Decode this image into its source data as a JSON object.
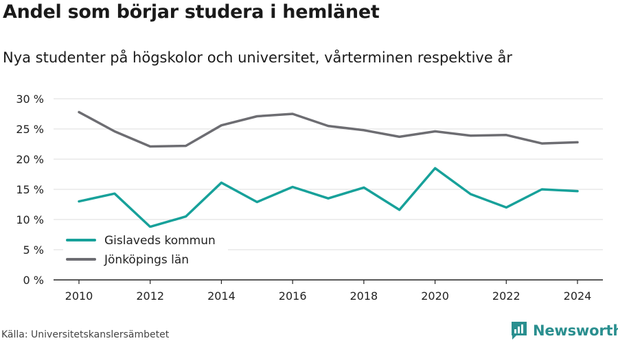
{
  "title": "Andel som börjar studera i hemlänet",
  "subtitle": "Nya studenter på högskolor och universitet, vårterminen respektive år",
  "source": "Källa: Universitetskanslersämbetet",
  "brand": {
    "name": "Newsworthy",
    "icon": "newsworthy-logo-icon",
    "color": "#2a8f8f"
  },
  "chart_data": {
    "type": "line",
    "title": "Andel som börjar studera i hemlänet",
    "subtitle": "Nya studenter på högskolor och universitet, vårterminen respektive år",
    "x": [
      2010,
      2011,
      2012,
      2013,
      2014,
      2015,
      2016,
      2017,
      2018,
      2019,
      2020,
      2021,
      2022,
      2023,
      2024
    ],
    "x_ticks": [
      2010,
      2012,
      2014,
      2016,
      2018,
      2020,
      2022,
      2024
    ],
    "y_ticks": [
      "0 %",
      "5 %",
      "10 %",
      "15 %",
      "20 %",
      "25 %",
      "30 %"
    ],
    "ylim": [
      0,
      30
    ],
    "grid": true,
    "legend_position": "bottom-left",
    "series": [
      {
        "name": "Gislaveds kommun",
        "color": "#17a19a",
        "values": [
          13.0,
          14.3,
          8.8,
          10.5,
          16.1,
          12.9,
          15.4,
          13.5,
          15.3,
          11.6,
          18.5,
          14.2,
          12.0,
          15.0,
          14.7
        ]
      },
      {
        "name": "Jönköpings län",
        "color": "#6d6d72",
        "values": [
          27.8,
          24.6,
          22.1,
          22.2,
          25.6,
          27.1,
          27.5,
          25.5,
          24.8,
          23.7,
          24.6,
          23.9,
          24.0,
          22.6,
          22.8
        ]
      }
    ]
  }
}
